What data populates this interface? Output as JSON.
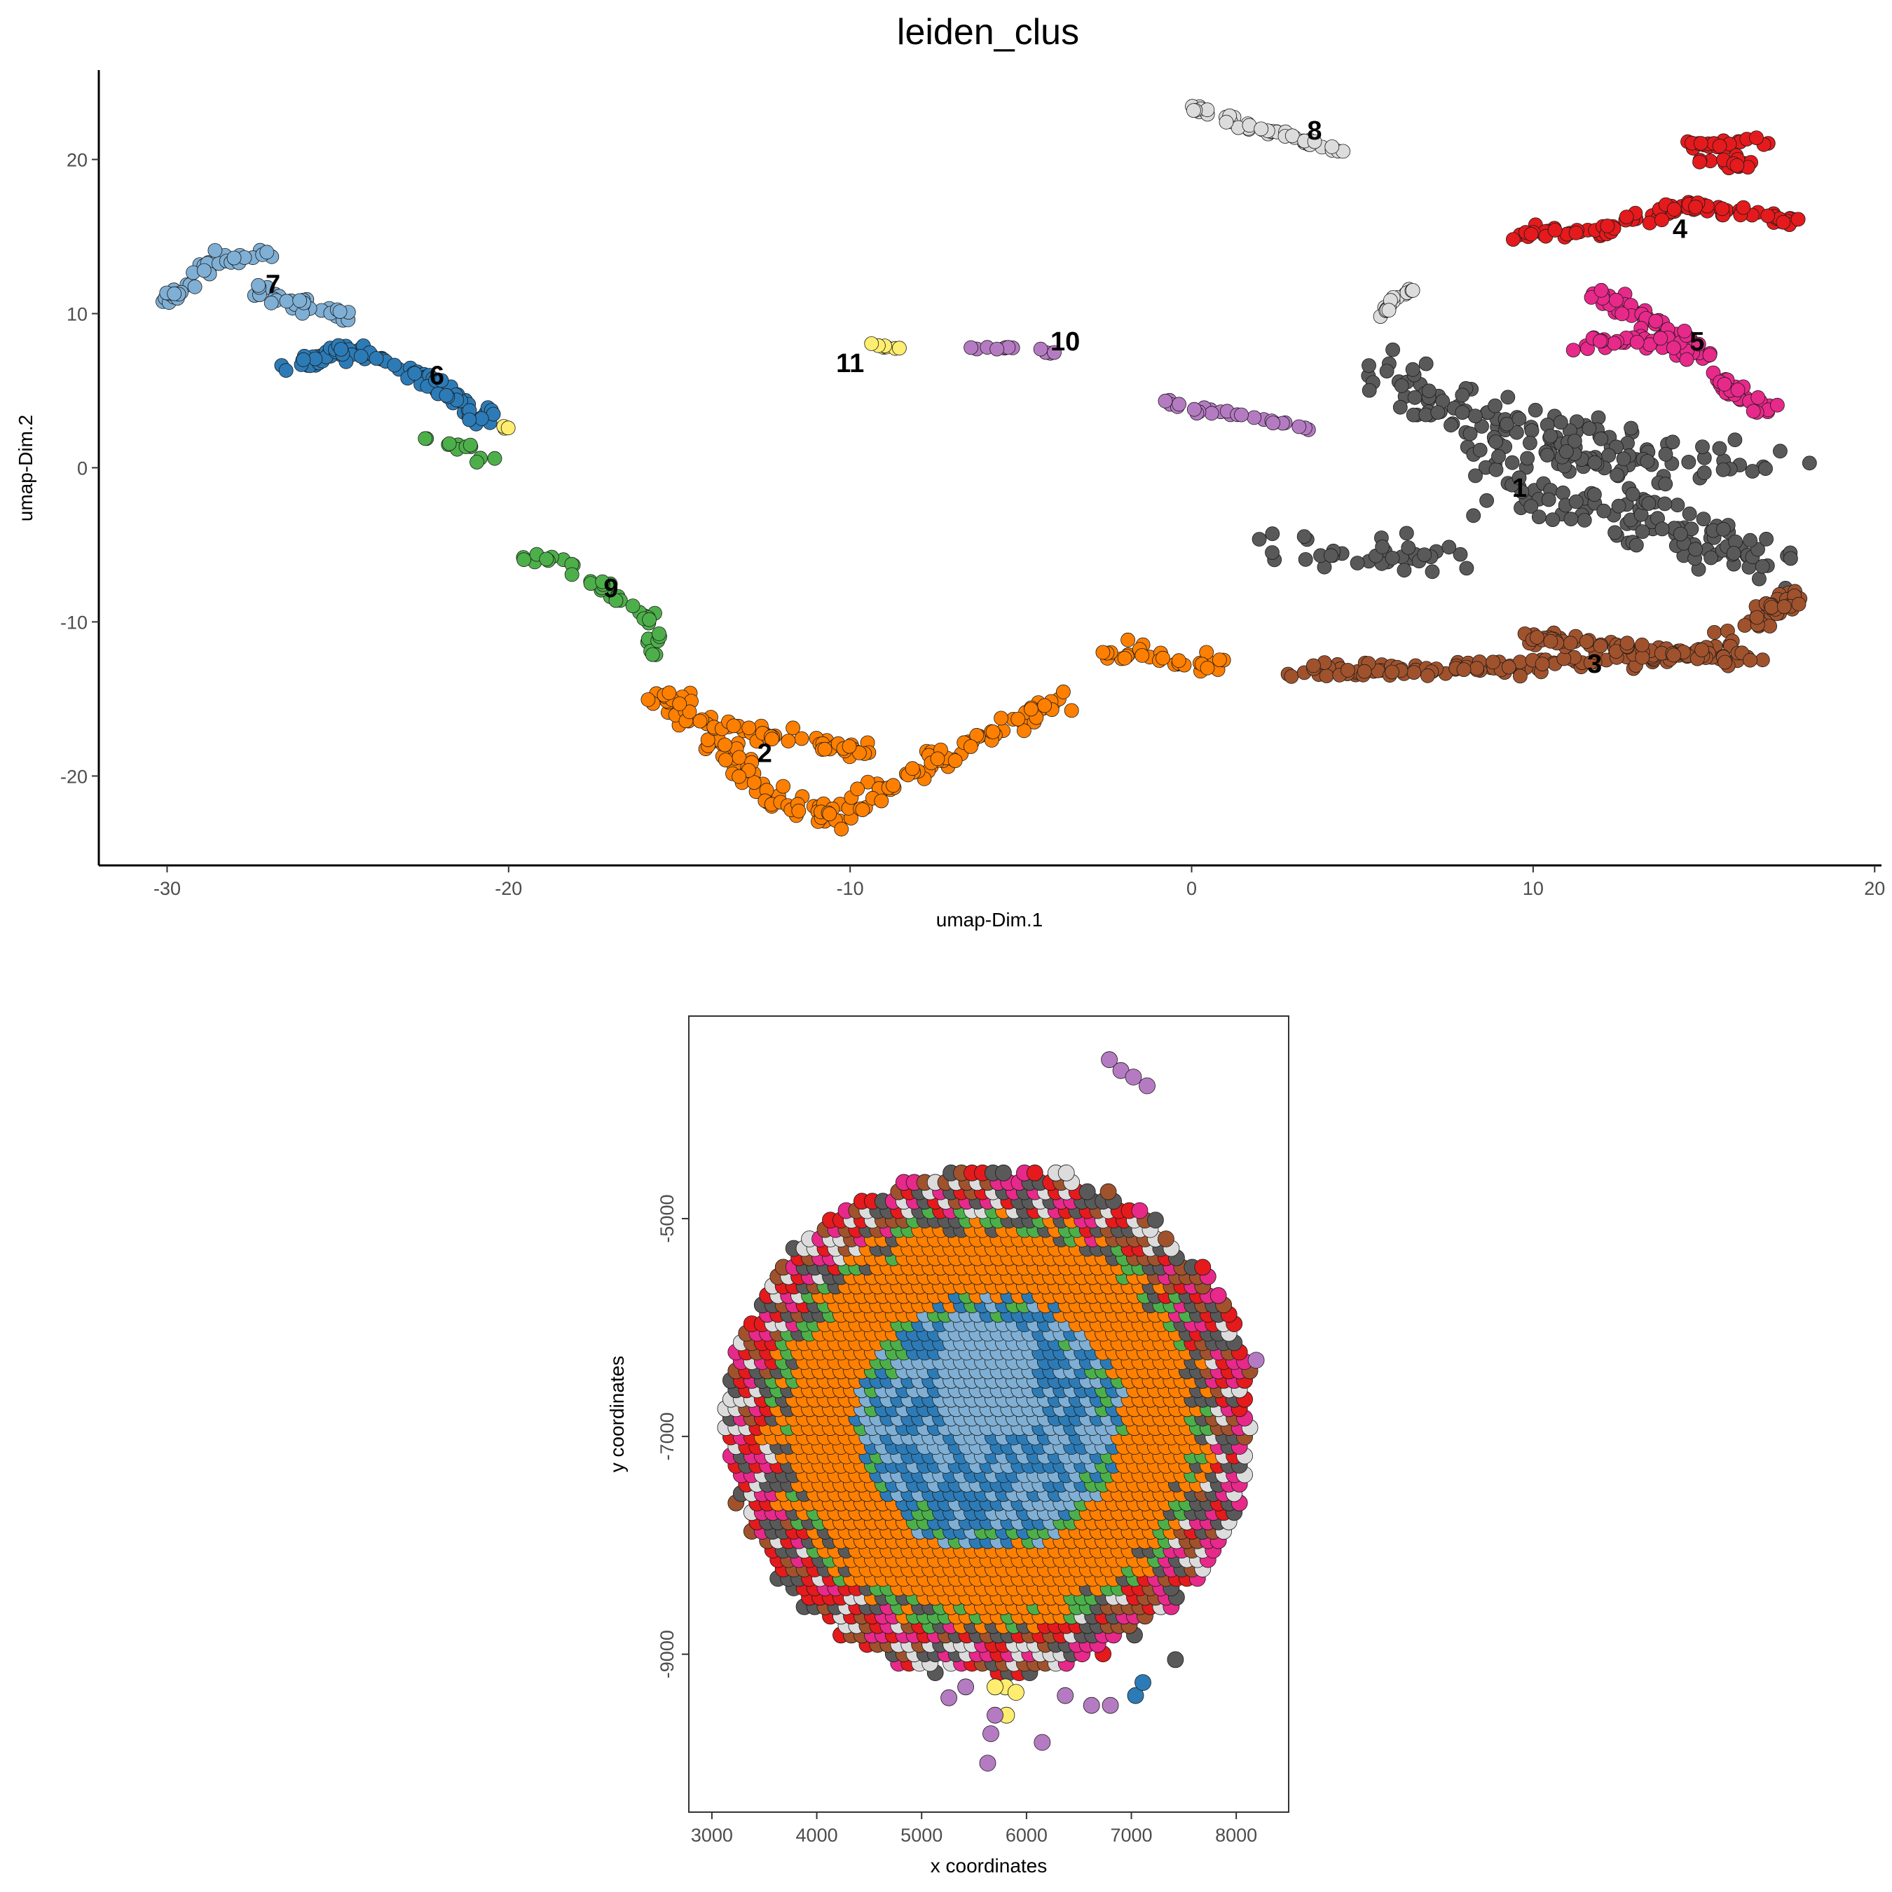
{
  "title": "leiden_clus",
  "palette": {
    "1": "#595959",
    "2": "#ff7f00",
    "3": "#a0522d",
    "4": "#e41a1c",
    "5": "#e7298a",
    "6": "#2c7bb6",
    "7": "#7fafd4",
    "8": "#dcdcdc",
    "9": "#4daf4a",
    "10": "#b57bc2",
    "11": "#ffed6f"
  },
  "chart_data": [
    {
      "type": "scatter",
      "xlabel": "umap-Dim.1",
      "ylabel": "umap-Dim.2",
      "xlim": [
        -32,
        20.2
      ],
      "ylim": [
        -25.8,
        25.8
      ],
      "xticks": [
        -30,
        -20,
        -10,
        0,
        10,
        20
      ],
      "yticks": [
        -20,
        -10,
        0,
        10,
        20
      ],
      "cluster_labels": [
        {
          "text": "1",
          "x": 9.6,
          "y": -1.3
        },
        {
          "text": "2",
          "x": -12.5,
          "y": -18.5
        },
        {
          "text": "3",
          "x": 11.8,
          "y": -12.7
        },
        {
          "text": "4",
          "x": 14.3,
          "y": 15.5
        },
        {
          "text": "5",
          "x": 14.8,
          "y": 8.2
        },
        {
          "text": "6",
          "x": -22.1,
          "y": 6.0
        },
        {
          "text": "7",
          "x": -26.9,
          "y": 11.9
        },
        {
          "text": "8",
          "x": 3.6,
          "y": 21.9
        },
        {
          "text": "9",
          "x": -17.0,
          "y": -7.8
        },
        {
          "text": "10",
          "x": -3.7,
          "y": 8.2
        },
        {
          "text": "11",
          "x": -10.0,
          "y": 6.8
        }
      ],
      "clusters": [
        {
          "id": "1",
          "n": 300,
          "segments": [
            [
              5.5,
              6.5,
              10.5,
              -2.0
            ],
            [
              10.5,
              -2.0,
              17,
              -6.5
            ],
            [
              6.5,
              4.0,
              16.5,
              0.0
            ],
            [
              10.5,
              2.0,
              16.5,
              -6.0
            ],
            [
              2.5,
              -5.0,
              7.5,
              -5.8
            ]
          ],
          "spread": 2.2
        },
        {
          "id": "2",
          "n": 240,
          "segments": [
            [
              -15.5,
              -14.5,
              -12.0,
              -21.5
            ],
            [
              -12.0,
              -21.5,
              -10.5,
              -22.7
            ],
            [
              -10.5,
              -22.7,
              -5.0,
              -16.0
            ],
            [
              -5.0,
              -16.0,
              -3.5,
              -15.0
            ],
            [
              -2.5,
              -12.0,
              1.0,
              -12.8
            ],
            [
              -14.5,
              -16.5,
              -9.5,
              -18.5
            ]
          ],
          "spread": 1.0
        },
        {
          "id": "3",
          "n": 230,
          "segments": [
            [
              3.0,
              -13.2,
              9.0,
              -13.0
            ],
            [
              9.0,
              -13.0,
              15.0,
              -12.0
            ],
            [
              15.0,
              -12.0,
              17.8,
              -8.4
            ],
            [
              9.5,
              -11.0,
              16.5,
              -12.5
            ]
          ],
          "spread": 0.8
        },
        {
          "id": "4",
          "n": 130,
          "segments": [
            [
              9.5,
              15.0,
              12.0,
              15.5
            ],
            [
              12.0,
              15.5,
              14.5,
              17.0
            ],
            [
              14.5,
              17.0,
              17.8,
              16.0
            ],
            [
              14.6,
              21.0,
              16.6,
              21.2
            ],
            [
              15.0,
              20.0,
              16.5,
              19.5
            ]
          ],
          "spread": 0.7
        },
        {
          "id": "5",
          "n": 120,
          "segments": [
            [
              11.5,
              11.5,
              13.5,
              9.5
            ],
            [
              13.5,
              9.5,
              15.0,
              7.0
            ],
            [
              11.5,
              8.0,
              14.5,
              8.5
            ],
            [
              15.0,
              6.0,
              17.0,
              3.5
            ]
          ],
          "spread": 0.8
        },
        {
          "id": "6",
          "n": 95,
          "segments": [
            [
              -26.5,
              6.2,
              -25.0,
              7.8
            ],
            [
              -25.0,
              7.8,
              -22.5,
              6.0
            ],
            [
              -22.5,
              6.0,
              -20.5,
              2.8
            ]
          ],
          "spread": 0.7
        },
        {
          "id": "7",
          "n": 75,
          "segments": [
            [
              -30.0,
              10.8,
              -28.5,
              13.5
            ],
            [
              -28.5,
              13.5,
              -27.0,
              13.8
            ],
            [
              -27.5,
              11.5,
              -24.5,
              9.5
            ]
          ],
          "spread": 0.7
        },
        {
          "id": "8",
          "n": 60,
          "segments": [
            [
              0.0,
              23.4,
              2.0,
              22.0
            ],
            [
              2.0,
              22.0,
              4.5,
              20.5
            ],
            [
              5.5,
              10.0,
              6.5,
              11.8
            ]
          ],
          "spread": 0.4
        },
        {
          "id": "9",
          "n": 50,
          "segments": [
            [
              -20.0,
              -5.5,
              -18.5,
              -6.2
            ],
            [
              -18.5,
              -6.2,
              -16.0,
              -9.5
            ],
            [
              -16.0,
              -9.5,
              -15.5,
              -12.5
            ],
            [
              -22.5,
              2.2,
              -20.5,
              0.5
            ]
          ],
          "spread": 0.5
        },
        {
          "id": "10",
          "n": 40,
          "segments": [
            [
              -6.5,
              7.8,
              -4.0,
              7.5
            ],
            [
              0.0,
              4.0,
              3.5,
              2.5
            ],
            [
              -1.0,
              4.5,
              0.5,
              3.5
            ]
          ],
          "spread": 0.3
        },
        {
          "id": "11",
          "n": 10,
          "segments": [
            [
              -9.3,
              8.0,
              -8.6,
              7.7
            ],
            [
              -20.1,
              2.7,
              -20.0,
              2.6
            ]
          ],
          "spread": 0.2
        }
      ],
      "grid": false,
      "legend": "none"
    },
    {
      "type": "scatter",
      "xlabel": "x coordinates",
      "ylabel": "y coordinates",
      "xlim": [
        2780,
        8500
      ],
      "ylim": [
        -10450,
        -3140
      ],
      "xticks": [
        3000,
        4000,
        5000,
        6000,
        7000,
        8000
      ],
      "yticks": [
        -5000,
        -7000,
        -9000
      ],
      "spot_spacing": 100,
      "tissue_center": [
        5650,
        -6850
      ],
      "tissue_radii": [
        2520,
        2320
      ],
      "layers": [
        {
          "max_r": 0.42,
          "clusters": [
            "6",
            "7"
          ]
        },
        {
          "max_r": 0.5,
          "clusters": [
            "9",
            "6",
            "7"
          ]
        },
        {
          "max_r": 0.76,
          "clusters": [
            "2"
          ]
        },
        {
          "max_r": 0.84,
          "clusters": [
            "9",
            "2",
            "1"
          ]
        },
        {
          "max_r": 1.0,
          "clusters": [
            "1",
            "3",
            "4",
            "5",
            "8"
          ]
        }
      ],
      "extra_points": [
        {
          "x": 5630,
          "y": -10000,
          "c": "10"
        },
        {
          "x": 5660,
          "y": -9730,
          "c": "10"
        },
        {
          "x": 6150,
          "y": -9810,
          "c": "10"
        },
        {
          "x": 5810,
          "y": -9560,
          "c": "11"
        },
        {
          "x": 5700,
          "y": -9560,
          "c": "10"
        },
        {
          "x": 6370,
          "y": -9380,
          "c": "10"
        },
        {
          "x": 6620,
          "y": -9470,
          "c": "10"
        },
        {
          "x": 6800,
          "y": -9470,
          "c": "10"
        },
        {
          "x": 7040,
          "y": -9380,
          "c": "6"
        },
        {
          "x": 7110,
          "y": -9260,
          "c": "6"
        },
        {
          "x": 7420,
          "y": -9050,
          "c": "1"
        },
        {
          "x": 5800,
          "y": -9300,
          "c": "11"
        },
        {
          "x": 5900,
          "y": -9350,
          "c": "11"
        },
        {
          "x": 5700,
          "y": -9300,
          "c": "11"
        },
        {
          "x": 6790,
          "y": -3540,
          "c": "10"
        },
        {
          "x": 6900,
          "y": -3640,
          "c": "10"
        },
        {
          "x": 7020,
          "y": -3700,
          "c": "10"
        },
        {
          "x": 7150,
          "y": -3780,
          "c": "10"
        },
        {
          "x": 8190,
          "y": -6300,
          "c": "10"
        },
        {
          "x": 5260,
          "y": -9400,
          "c": "10"
        },
        {
          "x": 5420,
          "y": -9300,
          "c": "10"
        }
      ],
      "grid": false,
      "legend": "none"
    }
  ]
}
